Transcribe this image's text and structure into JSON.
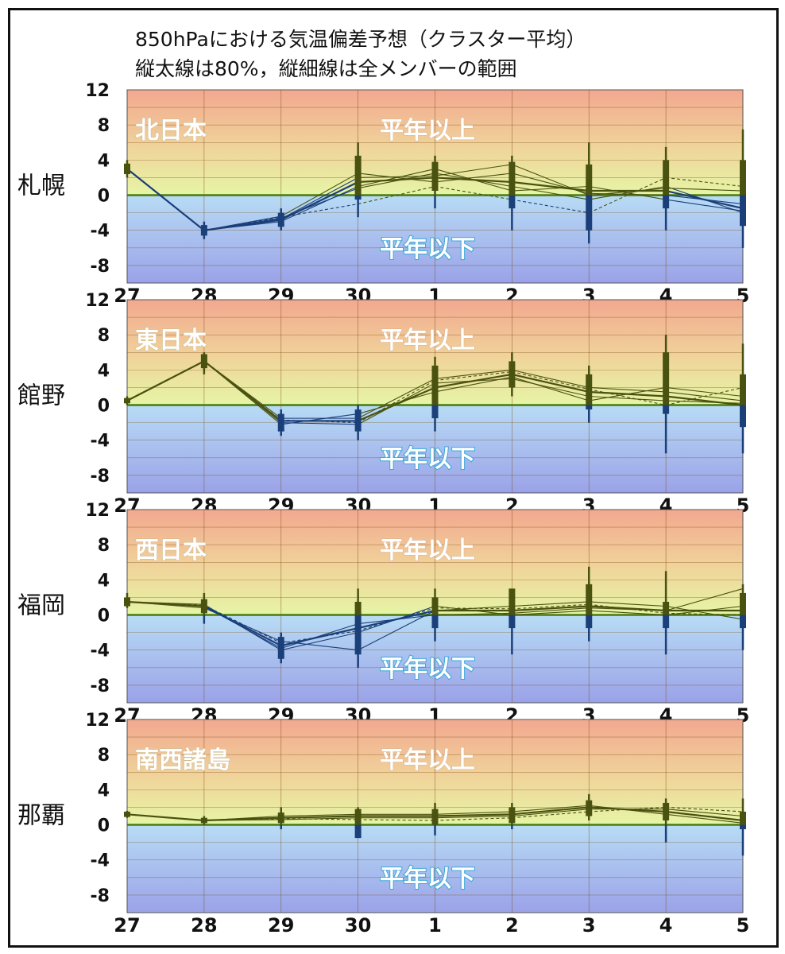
{
  "title": {
    "line1": "850hPaにおける気温偏差予想（クラスター平均）",
    "line2": "縦太線は80%，縦細線は全メンバーの範囲"
  },
  "labels": {
    "above": "平年以上",
    "below": "平年以下"
  },
  "colors": {
    "top": "#f2a890",
    "warm": "#f0d49a",
    "neutral": "#e6f5a6",
    "cool": "#b8dcf5",
    "bottom": "#9aa2e8",
    "above_series": "#4a5210",
    "below_series": "#1b3f78",
    "zero_line": "#4a7a10",
    "grid": "#7a4a10"
  },
  "chart_data": [
    {
      "type": "line",
      "region": "北日本",
      "station": "札幌",
      "x": [
        "27",
        "28",
        "29",
        "30",
        "1",
        "2",
        "3",
        "4",
        "5"
      ],
      "ylim": [
        -10,
        12
      ],
      "yticks": [
        "12",
        "8",
        "4",
        "0",
        "-4",
        "-8"
      ],
      "series": [
        {
          "values": [
            3.0,
            -4.0,
            -2.8,
            1.5,
            2.0,
            1.5,
            0.5,
            0.5,
            -1.5
          ]
        },
        {
          "values": [
            3.0,
            -4.0,
            -2.6,
            0.8,
            2.5,
            1.0,
            -0.5,
            1.0,
            -2.0
          ]
        },
        {
          "values": [
            3.0,
            -4.0,
            -2.4,
            2.5,
            1.5,
            2.5,
            0.2,
            0.0,
            -1.0
          ]
        },
        {
          "values": [
            3.0,
            -4.0,
            -3.0,
            1.0,
            3.0,
            0.5,
            1.0,
            -0.5,
            -1.8
          ]
        },
        {
          "values": [
            3.0,
            -4.0,
            -2.7,
            2.0,
            2.2,
            3.5,
            0.0,
            0.8,
            0.5
          ]
        },
        {
          "values": [
            3.0,
            -4.0,
            -2.5,
            -1.0,
            1.0,
            -0.5,
            -2.0,
            2.0,
            1.0
          ]
        }
      ],
      "ranges": [
        {
          "p10": 2.4,
          "p90": 3.6,
          "min": 2.0,
          "max": 4.0
        },
        {
          "p10": -4.6,
          "p90": -3.4,
          "min": -5.0,
          "max": -3.0
        },
        {
          "p10": -3.6,
          "p90": -2.0,
          "min": -4.0,
          "max": -1.5
        },
        {
          "p10": -0.5,
          "p90": 4.5,
          "min": -2.5,
          "max": 6.0
        },
        {
          "p10": 0.5,
          "p90": 3.8,
          "min": -1.5,
          "max": 4.5
        },
        {
          "p10": -1.5,
          "p90": 3.8,
          "min": -4.0,
          "max": 4.5
        },
        {
          "p10": -4.0,
          "p90": 3.5,
          "min": -5.5,
          "max": 6.0
        },
        {
          "p10": -1.5,
          "p90": 4.0,
          "min": -4.0,
          "max": 5.5
        },
        {
          "p10": -3.5,
          "p90": 4.0,
          "min": -6.0,
          "max": 7.5
        }
      ]
    },
    {
      "type": "line",
      "region": "東日本",
      "station": "館野",
      "x": [
        "27",
        "28",
        "29",
        "30",
        "1",
        "2",
        "3",
        "4",
        "5"
      ],
      "ylim": [
        -10,
        12
      ],
      "yticks": [
        "12",
        "8",
        "4",
        "0",
        "-4",
        "-8"
      ],
      "series": [
        {
          "values": [
            0.5,
            5.0,
            -1.8,
            -1.8,
            2.0,
            3.5,
            1.5,
            1.0,
            0.0
          ]
        },
        {
          "values": [
            0.5,
            5.0,
            -2.0,
            -2.2,
            2.5,
            3.0,
            1.0,
            0.5,
            0.2
          ]
        },
        {
          "values": [
            0.5,
            5.0,
            -1.5,
            -1.5,
            3.0,
            4.0,
            2.0,
            1.5,
            0.5
          ]
        },
        {
          "values": [
            0.5,
            5.0,
            -2.2,
            -1.0,
            1.5,
            3.2,
            0.5,
            2.0,
            1.0
          ]
        },
        {
          "values": [
            0.5,
            5.0,
            -1.7,
            -2.0,
            2.8,
            3.8,
            1.8,
            0.0,
            2.0
          ]
        }
      ],
      "ranges": [
        {
          "p10": 0.2,
          "p90": 0.8,
          "min": 0.0,
          "max": 1.0
        },
        {
          "p10": 4.2,
          "p90": 5.8,
          "min": 3.5,
          "max": 6.0
        },
        {
          "p10": -3.0,
          "p90": -1.0,
          "min": -3.5,
          "max": -0.5
        },
        {
          "p10": -3.0,
          "p90": -0.5,
          "min": -4.0,
          "max": 0.0
        },
        {
          "p10": -1.5,
          "p90": 4.5,
          "min": -3.0,
          "max": 5.5
        },
        {
          "p10": 2.0,
          "p90": 5.0,
          "min": 1.0,
          "max": 6.0
        },
        {
          "p10": -0.5,
          "p90": 3.5,
          "min": -2.0,
          "max": 4.5
        },
        {
          "p10": -1.0,
          "p90": 6.0,
          "min": -5.5,
          "max": 8.0
        },
        {
          "p10": -2.5,
          "p90": 3.5,
          "min": -5.5,
          "max": 7.0
        }
      ]
    },
    {
      "type": "line",
      "region": "西日本",
      "station": "福岡",
      "x": [
        "27",
        "28",
        "29",
        "30",
        "1",
        "2",
        "3",
        "4",
        "5"
      ],
      "ylim": [
        -10,
        12
      ],
      "yticks": [
        "12",
        "8",
        "4",
        "0",
        "-4",
        "-8"
      ],
      "series": [
        {
          "values": [
            1.5,
            1.0,
            -3.5,
            -1.5,
            0.5,
            0.5,
            1.0,
            0.5,
            0.5
          ]
        },
        {
          "values": [
            1.5,
            1.2,
            -4.0,
            -2.0,
            1.0,
            0.0,
            0.5,
            0.0,
            1.0
          ]
        },
        {
          "values": [
            1.5,
            0.8,
            -3.0,
            -4.0,
            0.5,
            1.0,
            1.5,
            1.0,
            -0.5
          ]
        },
        {
          "values": [
            1.5,
            1.0,
            -3.8,
            -1.0,
            0.0,
            0.2,
            0.8,
            0.5,
            3.0
          ]
        },
        {
          "values": [
            1.5,
            1.1,
            -3.2,
            -1.8,
            0.8,
            0.7,
            1.2,
            0.2,
            0.0
          ]
        }
      ],
      "ranges": [
        {
          "p10": 1.0,
          "p90": 2.0,
          "min": 0.8,
          "max": 2.5
        },
        {
          "p10": 0.2,
          "p90": 1.8,
          "min": -1.0,
          "max": 2.5
        },
        {
          "p10": -5.0,
          "p90": -2.5,
          "min": -5.5,
          "max": -2.0
        },
        {
          "p10": -4.5,
          "p90": 1.5,
          "min": -6.0,
          "max": 3.0
        },
        {
          "p10": -1.5,
          "p90": 2.0,
          "min": -3.0,
          "max": 3.0
        },
        {
          "p10": -1.5,
          "p90": 3.0,
          "min": -4.5,
          "max": 3.0
        },
        {
          "p10": -1.5,
          "p90": 3.5,
          "min": -3.0,
          "max": 5.5
        },
        {
          "p10": -1.5,
          "p90": 1.5,
          "min": -4.5,
          "max": 5.0
        },
        {
          "p10": -1.5,
          "p90": 2.5,
          "min": -4.0,
          "max": 3.5
        }
      ]
    },
    {
      "type": "line",
      "region": "南西諸島",
      "station": "那覇",
      "x": [
        "27",
        "28",
        "29",
        "30",
        "1",
        "2",
        "3",
        "4",
        "5"
      ],
      "ylim": [
        -10,
        12
      ],
      "yticks": [
        "12",
        "8",
        "4",
        "0",
        "-4",
        "-8"
      ],
      "series": [
        {
          "values": [
            1.2,
            0.5,
            0.8,
            1.0,
            1.0,
            1.2,
            2.0,
            1.5,
            0.5
          ]
        },
        {
          "values": [
            1.2,
            0.5,
            0.6,
            0.8,
            0.8,
            1.0,
            1.8,
            1.8,
            1.0
          ]
        },
        {
          "values": [
            1.2,
            0.5,
            1.0,
            1.2,
            1.2,
            1.5,
            2.2,
            1.2,
            0.2
          ]
        },
        {
          "values": [
            1.2,
            0.5,
            0.7,
            0.6,
            0.5,
            0.8,
            1.5,
            2.0,
            1.5
          ]
        }
      ],
      "ranges": [
        {
          "p10": 0.9,
          "p90": 1.5,
          "min": 0.8,
          "max": 1.6
        },
        {
          "p10": 0.2,
          "p90": 0.8,
          "min": 0.0,
          "max": 1.0
        },
        {
          "p10": 0.2,
          "p90": 1.4,
          "min": -0.5,
          "max": 2.0
        },
        {
          "p10": -1.5,
          "p90": 1.8,
          "min": -1.5,
          "max": 2.0
        },
        {
          "p10": 0.0,
          "p90": 1.8,
          "min": -1.2,
          "max": 2.5
        },
        {
          "p10": 0.2,
          "p90": 2.0,
          "min": -0.5,
          "max": 2.5
        },
        {
          "p10": 1.0,
          "p90": 2.8,
          "min": 0.5,
          "max": 3.5
        },
        {
          "p10": 0.5,
          "p90": 2.5,
          "min": -2.0,
          "max": 3.0
        },
        {
          "p10": -0.5,
          "p90": 1.5,
          "min": -3.5,
          "max": 3.0
        }
      ]
    }
  ]
}
